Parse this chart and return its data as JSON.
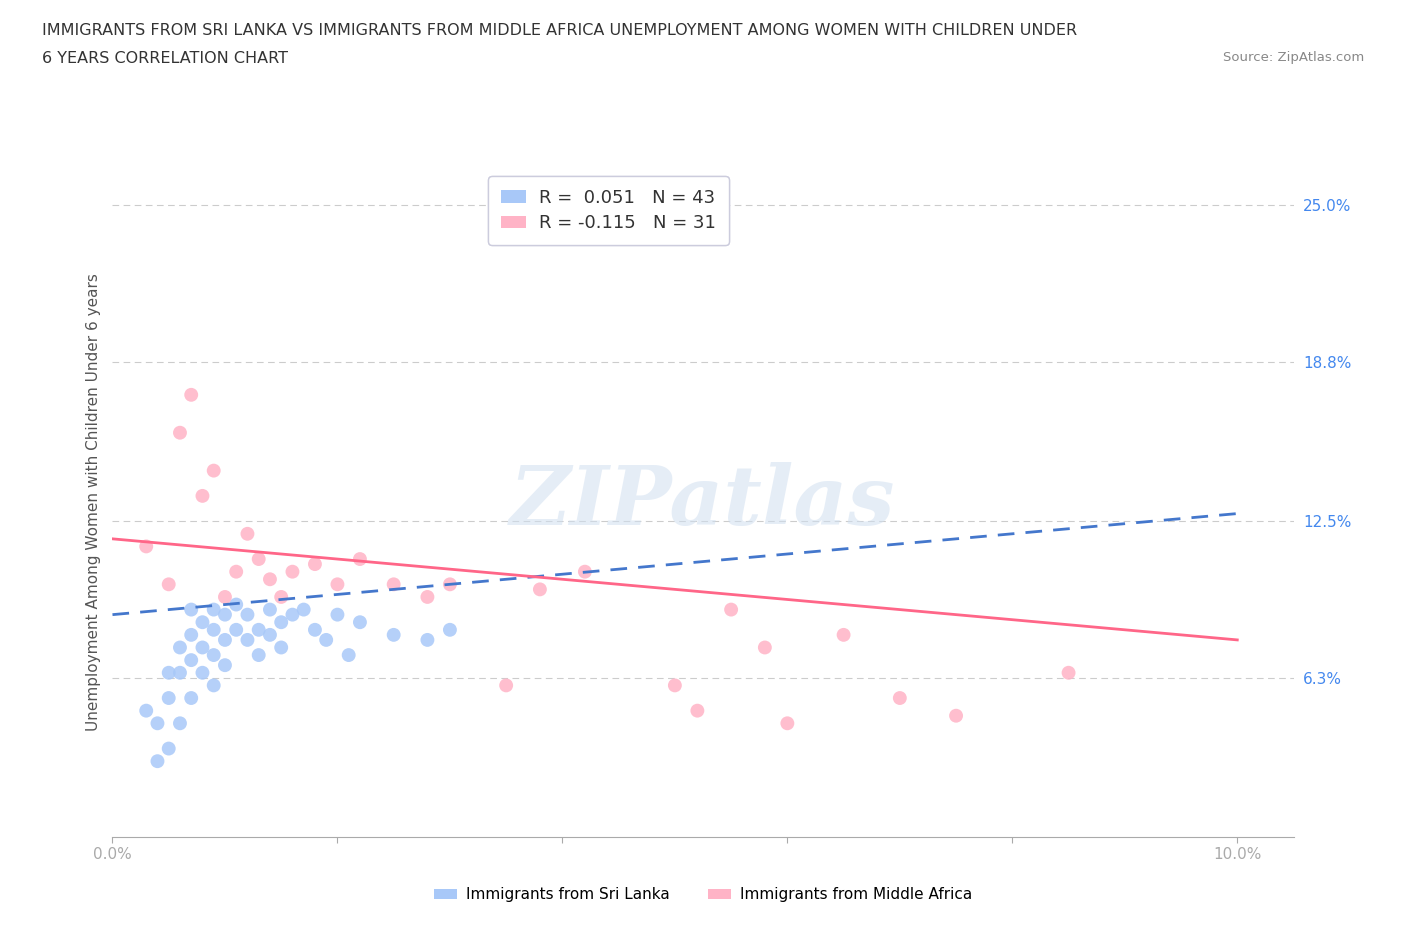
{
  "title_line1": "IMMIGRANTS FROM SRI LANKA VS IMMIGRANTS FROM MIDDLE AFRICA UNEMPLOYMENT AMONG WOMEN WITH CHILDREN UNDER",
  "title_line2": "6 YEARS CORRELATION CHART",
  "source": "Source: ZipAtlas.com",
  "ylabel": "Unemployment Among Women with Children Under 6 years",
  "xlim": [
    0.0,
    0.105
  ],
  "ylim": [
    0.0,
    0.265
  ],
  "xticks": [
    0.0,
    0.02,
    0.04,
    0.06,
    0.08,
    0.1
  ],
  "xtick_labels": [
    "0.0%",
    "",
    "",
    "",
    "",
    "10.0%"
  ],
  "yticks_right": [
    0.063,
    0.125,
    0.188,
    0.25
  ],
  "ytick_labels_right": [
    "6.3%",
    "12.5%",
    "18.8%",
    "25.0%"
  ],
  "r_sri_lanka": 0.051,
  "n_sri_lanka": 43,
  "r_middle_africa": -0.115,
  "n_middle_africa": 31,
  "color_sri_lanka": "#a8c8f8",
  "color_middle_africa": "#ffb3c6",
  "line_color_sri_lanka": "#4477cc",
  "line_color_middle_africa": "#ff6688",
  "legend_label_sri_lanka": "Immigrants from Sri Lanka",
  "legend_label_middle_africa": "Immigrants from Middle Africa",
  "watermark": "ZIPatlas",
  "sri_lanka_x": [
    0.003,
    0.004,
    0.004,
    0.005,
    0.005,
    0.005,
    0.006,
    0.006,
    0.006,
    0.007,
    0.007,
    0.007,
    0.007,
    0.008,
    0.008,
    0.008,
    0.009,
    0.009,
    0.009,
    0.009,
    0.01,
    0.01,
    0.01,
    0.011,
    0.011,
    0.012,
    0.012,
    0.013,
    0.013,
    0.014,
    0.014,
    0.015,
    0.015,
    0.016,
    0.017,
    0.018,
    0.019,
    0.02,
    0.021,
    0.022,
    0.025,
    0.028,
    0.03
  ],
  "sri_lanka_y": [
    0.05,
    0.03,
    0.045,
    0.065,
    0.055,
    0.035,
    0.075,
    0.065,
    0.045,
    0.09,
    0.08,
    0.07,
    0.055,
    0.085,
    0.075,
    0.065,
    0.09,
    0.082,
    0.072,
    0.06,
    0.088,
    0.078,
    0.068,
    0.092,
    0.082,
    0.088,
    0.078,
    0.082,
    0.072,
    0.09,
    0.08,
    0.085,
    0.075,
    0.088,
    0.09,
    0.082,
    0.078,
    0.088,
    0.072,
    0.085,
    0.08,
    0.078,
    0.082
  ],
  "middle_africa_x": [
    0.003,
    0.005,
    0.006,
    0.007,
    0.008,
    0.009,
    0.01,
    0.011,
    0.012,
    0.013,
    0.014,
    0.015,
    0.016,
    0.018,
    0.02,
    0.022,
    0.025,
    0.028,
    0.03,
    0.035,
    0.038,
    0.042,
    0.05,
    0.052,
    0.055,
    0.058,
    0.06,
    0.065,
    0.07,
    0.075,
    0.085
  ],
  "middle_africa_y": [
    0.115,
    0.1,
    0.16,
    0.175,
    0.135,
    0.145,
    0.095,
    0.105,
    0.12,
    0.11,
    0.102,
    0.095,
    0.105,
    0.108,
    0.1,
    0.11,
    0.1,
    0.095,
    0.1,
    0.06,
    0.098,
    0.105,
    0.06,
    0.05,
    0.09,
    0.075,
    0.045,
    0.08,
    0.055,
    0.048,
    0.065
  ],
  "sri_lanka_trend_x": [
    0.0,
    0.1
  ],
  "sri_lanka_trend_y": [
    0.088,
    0.128
  ],
  "middle_africa_trend_x": [
    0.0,
    0.1
  ],
  "middle_africa_trend_y": [
    0.118,
    0.078
  ]
}
